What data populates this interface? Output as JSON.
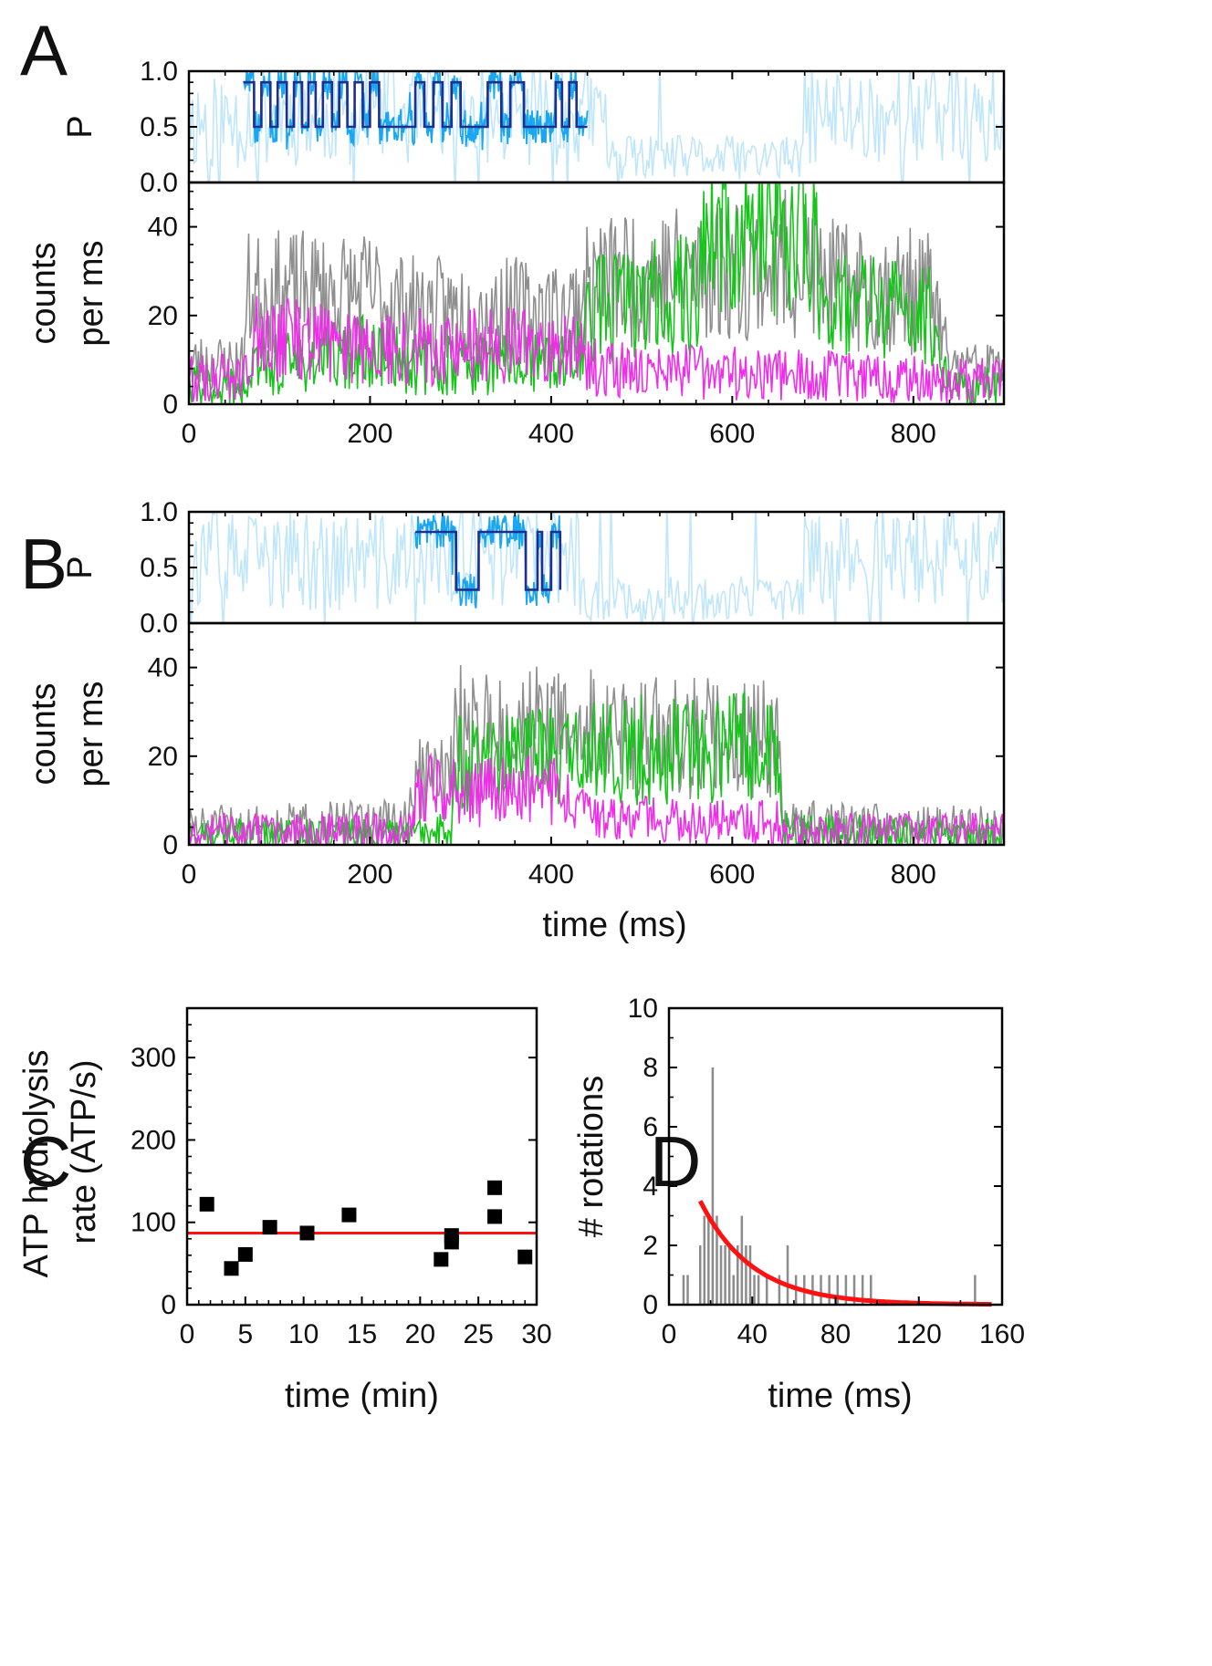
{
  "figure": {
    "panel_labels": [
      "A",
      "B",
      "C",
      "D"
    ]
  },
  "chart_data": [
    {
      "id": "A-P",
      "type": "line",
      "panel": "A",
      "ylabel": "P",
      "xlim": [
        0,
        900
      ],
      "ylim": [
        0,
        1
      ],
      "y_ticks": [
        0,
        0.5,
        1
      ],
      "y_tick_labels": [
        "0.0",
        "0.5",
        "1.0"
      ],
      "window": [
        60,
        440
      ],
      "levels": [
        0.5,
        0.9
      ],
      "steps": [
        [
          60,
          0.9
        ],
        [
          72,
          0.5
        ],
        [
          80,
          0.9
        ],
        [
          90,
          0.5
        ],
        [
          98,
          0.9
        ],
        [
          108,
          0.5
        ],
        [
          116,
          0.9
        ],
        [
          125,
          0.5
        ],
        [
          132,
          0.9
        ],
        [
          140,
          0.5
        ],
        [
          148,
          0.9
        ],
        [
          158,
          0.5
        ],
        [
          166,
          0.9
        ],
        [
          175,
          0.5
        ],
        [
          183,
          0.9
        ],
        [
          192,
          0.5
        ],
        [
          200,
          0.9
        ],
        [
          210,
          0.5
        ],
        [
          250,
          0.9
        ],
        [
          260,
          0.5
        ],
        [
          270,
          0.9
        ],
        [
          280,
          0.5
        ],
        [
          290,
          0.9
        ],
        [
          300,
          0.5
        ],
        [
          330,
          0.9
        ],
        [
          345,
          0.5
        ],
        [
          355,
          0.9
        ],
        [
          370,
          0.5
        ],
        [
          405,
          0.9
        ],
        [
          412,
          0.5
        ],
        [
          420,
          0.9
        ],
        [
          428,
          0.5
        ],
        [
          440,
          0.5
        ]
      ],
      "colors": {
        "trace": "#1aa6f0",
        "trace_faded": "#bfe6fb",
        "steps": "#1f2f8f"
      }
    },
    {
      "id": "A-counts",
      "type": "line",
      "panel": "A",
      "ylabel_lines": [
        "counts",
        "per ms"
      ],
      "xlim": [
        0,
        900
      ],
      "ylim": [
        0,
        50
      ],
      "x_ticks": [
        0,
        200,
        400,
        600,
        800
      ],
      "x_tick_labels": [
        "0",
        "200",
        "400",
        "600",
        "800"
      ],
      "y_ticks": [
        0,
        20,
        40
      ],
      "y_tick_labels": [
        "0",
        "20",
        "40"
      ],
      "series": [
        {
          "name": "sum",
          "color": "#8f8f8f",
          "level": [
            [
              0,
              9
            ],
            [
              60,
              9
            ],
            [
              65,
              25
            ],
            [
              200,
              25
            ],
            [
              250,
              21
            ],
            [
              420,
              21
            ],
            [
              450,
              28
            ],
            [
              560,
              30
            ],
            [
              690,
              32
            ],
            [
              700,
              27
            ],
            [
              820,
              25
            ],
            [
              840,
              8
            ],
            [
              900,
              8
            ]
          ]
        },
        {
          "name": "green",
          "color": "#16c41a",
          "level": [
            [
              0,
              4
            ],
            [
              65,
              4
            ],
            [
              70,
              8
            ],
            [
              200,
              12
            ],
            [
              250,
              9
            ],
            [
              420,
              9
            ],
            [
              450,
              22
            ],
            [
              560,
              25
            ],
            [
              570,
              38
            ],
            [
              690,
              38
            ],
            [
              700,
              24
            ],
            [
              820,
              20
            ],
            [
              840,
              4
            ],
            [
              900,
              4
            ]
          ]
        },
        {
          "name": "magenta",
          "color": "#ee2ee8",
          "level": [
            [
              0,
              6
            ],
            [
              65,
              6
            ],
            [
              70,
              15
            ],
            [
              250,
              13
            ],
            [
              420,
              13
            ],
            [
              450,
              8
            ],
            [
              900,
              5
            ]
          ]
        }
      ]
    },
    {
      "id": "B-P",
      "type": "line",
      "panel": "B",
      "ylabel": "P",
      "xlim": [
        0,
        900
      ],
      "ylim": [
        0,
        1
      ],
      "y_ticks": [
        0,
        0.5,
        1
      ],
      "y_tick_labels": [
        "0.0",
        "0.5",
        "1.0"
      ],
      "window": [
        250,
        410
      ],
      "levels": [
        0.3,
        0.82
      ],
      "steps": [
        [
          250,
          0.82
        ],
        [
          295,
          0.3
        ],
        [
          320,
          0.82
        ],
        [
          372,
          0.3
        ],
        [
          385,
          0.82
        ],
        [
          390,
          0.3
        ],
        [
          400,
          0.82
        ],
        [
          410,
          0.3
        ]
      ],
      "colors": {
        "trace": "#1aa6f0",
        "trace_faded": "#bfe6fb",
        "steps": "#1f2f8f"
      }
    },
    {
      "id": "B-counts",
      "type": "line",
      "panel": "B",
      "ylabel_lines": [
        "counts",
        "per ms"
      ],
      "xlabel": "time (ms)",
      "xlim": [
        0,
        900
      ],
      "ylim": [
        0,
        50
      ],
      "x_ticks": [
        0,
        200,
        400,
        600,
        800
      ],
      "x_tick_labels": [
        "0",
        "200",
        "400",
        "600",
        "800"
      ],
      "y_ticks": [
        0,
        20,
        40
      ],
      "y_tick_labels": [
        "0",
        "20",
        "40"
      ],
      "series": [
        {
          "name": "sum",
          "color": "#8f8f8f",
          "level": [
            [
              0,
              4
            ],
            [
              240,
              5
            ],
            [
              255,
              15
            ],
            [
              290,
              15
            ],
            [
              295,
              26
            ],
            [
              420,
              26
            ],
            [
              520,
              24
            ],
            [
              650,
              24
            ],
            [
              655,
              5
            ],
            [
              900,
              4
            ]
          ]
        },
        {
          "name": "green",
          "color": "#16c41a",
          "level": [
            [
              0,
              2
            ],
            [
              240,
              2
            ],
            [
              290,
              3
            ],
            [
              295,
              18
            ],
            [
              420,
              20
            ],
            [
              520,
              22
            ],
            [
              650,
              22
            ],
            [
              655,
              3
            ],
            [
              900,
              2
            ]
          ]
        },
        {
          "name": "magenta",
          "color": "#ee2ee8",
          "level": [
            [
              0,
              3
            ],
            [
              240,
              3
            ],
            [
              255,
              12
            ],
            [
              420,
              12
            ],
            [
              450,
              6
            ],
            [
              650,
              5
            ],
            [
              655,
              3
            ],
            [
              900,
              3
            ]
          ]
        }
      ]
    },
    {
      "id": "C",
      "type": "scatter",
      "panel": "C",
      "xlabel": "time (min)",
      "ylabel_lines": [
        "ATP hydrolysis",
        "rate (ATP/s)"
      ],
      "xlim": [
        0,
        30
      ],
      "ylim": [
        0,
        360
      ],
      "x_ticks": [
        0,
        5,
        10,
        15,
        20,
        25,
        30
      ],
      "x_tick_labels": [
        "0",
        "5",
        "10",
        "15",
        "20",
        "25",
        "30"
      ],
      "y_ticks": [
        0,
        100,
        200,
        300
      ],
      "y_tick_labels": [
        "0",
        "100",
        "200",
        "300"
      ],
      "points": [
        [
          1.7,
          122
        ],
        [
          3.8,
          44
        ],
        [
          5.0,
          61
        ],
        [
          7.1,
          94
        ],
        [
          10.3,
          87
        ],
        [
          13.9,
          109
        ],
        [
          21.8,
          55
        ],
        [
          22.7,
          84
        ],
        [
          22.7,
          76
        ],
        [
          26.4,
          142
        ],
        [
          26.4,
          107
        ],
        [
          29.0,
          58
        ]
      ],
      "fit_y": 87,
      "colors": {
        "points": "#000000",
        "fit": "#ff1111"
      }
    },
    {
      "id": "D",
      "type": "bar",
      "panel": "D",
      "xlabel": "time (ms)",
      "ylabel": "# rotations",
      "xlim": [
        0,
        160
      ],
      "ylim": [
        0,
        10
      ],
      "x_ticks": [
        0,
        40,
        80,
        120,
        160
      ],
      "x_tick_labels": [
        "0",
        "40",
        "80",
        "120",
        "160"
      ],
      "y_ticks": [
        0,
        2,
        4,
        6,
        8,
        10
      ],
      "y_tick_labels": [
        "0",
        "2",
        "4",
        "6",
        "8",
        "10"
      ],
      "bins_x": [
        7,
        9,
        15,
        17,
        19,
        21,
        23,
        25,
        27,
        29,
        31,
        33,
        35,
        37,
        39,
        41,
        43,
        47,
        53,
        57,
        61,
        65,
        69,
        73,
        77,
        81,
        85,
        89,
        93,
        97,
        147
      ],
      "bins_count": [
        1,
        1,
        2,
        3,
        3,
        8,
        3,
        2,
        2,
        2,
        1,
        2,
        3,
        2,
        2,
        1,
        1,
        1,
        1,
        2,
        1,
        1,
        1,
        1,
        1,
        1,
        1,
        1,
        1,
        1,
        1
      ],
      "fit": {
        "amplitude": 3.5,
        "x0": 15,
        "tau": 25,
        "x_start": 15,
        "x_end": 155
      },
      "colors": {
        "bars": "#8c8c8c",
        "fit": "#ff1111"
      }
    }
  ]
}
